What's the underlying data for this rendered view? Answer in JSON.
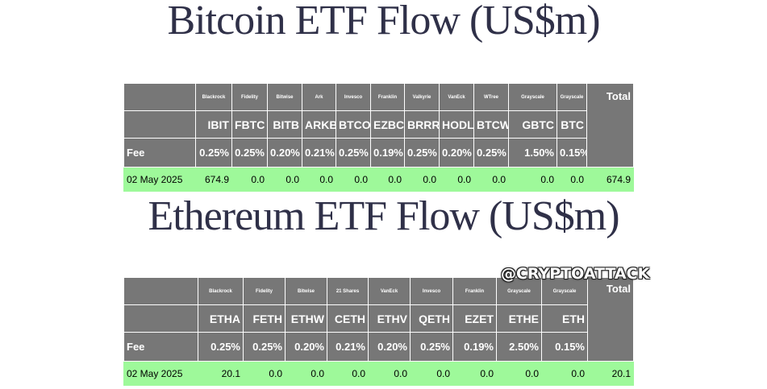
{
  "bitcoin": {
    "title": "Bitcoin ETF Flow (US$m)",
    "issuers": [
      "Blackrock",
      "Fidelity",
      "Bitwise",
      "Ark",
      "Invesco",
      "Franklin",
      "Valkyrie",
      "VanEck",
      "WTree",
      "Grayscale",
      "Grayscale"
    ],
    "tickers": [
      "IBIT",
      "FBTC",
      "BITB",
      "ARKB",
      "BTCO",
      "EZBC",
      "BRRR",
      "HODL",
      "BTCW",
      "GBTC",
      "BTC"
    ],
    "fee_label": "Fee",
    "fees": [
      "0.25%",
      "0.25%",
      "0.20%",
      "0.21%",
      "0.25%",
      "0.19%",
      "0.25%",
      "0.20%",
      "0.25%",
      "1.50%",
      "0.15%"
    ],
    "total_label": "Total",
    "flow": {
      "date": "02 May 2025",
      "values": [
        "674.9",
        "0.0",
        "0.0",
        "0.0",
        "0.0",
        "0.0",
        "0.0",
        "0.0",
        "0.0",
        "0.0",
        "0.0"
      ],
      "total": "674.9"
    }
  },
  "ethereum": {
    "title": "Ethereum ETF Flow (US$m)",
    "issuers": [
      "Blackrock",
      "Fidelity",
      "Bitwise",
      "21 Shares",
      "VanEck",
      "Invesco",
      "Franklin",
      "Grayscale",
      "Grayscale"
    ],
    "tickers": [
      "ETHA",
      "FETH",
      "ETHW",
      "CETH",
      "ETHV",
      "QETH",
      "EZET",
      "ETHE",
      "ETH"
    ],
    "fee_label": "Fee",
    "fees": [
      "0.25%",
      "0.25%",
      "0.20%",
      "0.21%",
      "0.20%",
      "0.25%",
      "0.19%",
      "2.50%",
      "0.15%"
    ],
    "total_label": "Total",
    "flow": {
      "date": "02 May 2025",
      "values": [
        "20.1",
        "0.0",
        "0.0",
        "0.0",
        "0.0",
        "0.0",
        "0.0",
        "0.0",
        "0.0"
      ],
      "total": "20.1"
    }
  },
  "watermark": "@CRYPTOATTACK",
  "colors": {
    "header_bg": "#777777",
    "flow_bg": "#9ef99a",
    "title": "#2f3048"
  }
}
